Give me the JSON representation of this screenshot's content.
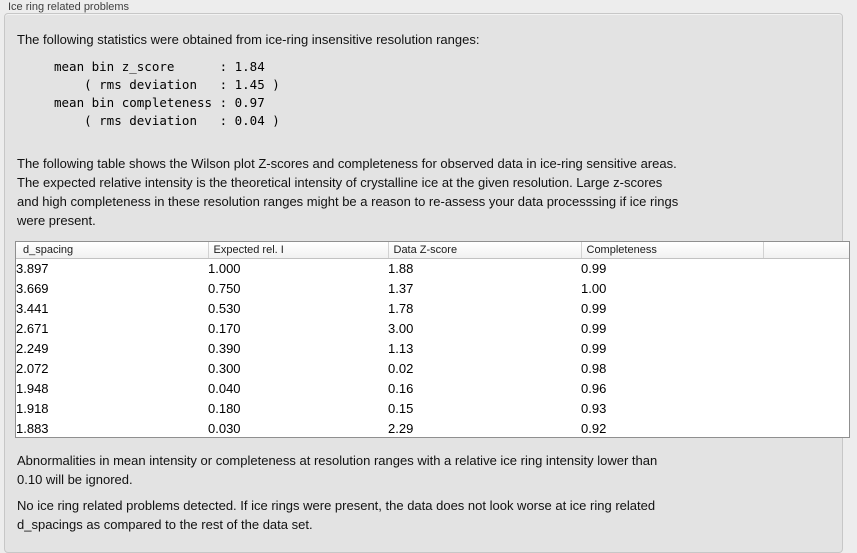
{
  "group": {
    "title": "Ice ring related problems"
  },
  "texts": {
    "intro": "The following statistics were obtained from ice-ring insensitive resolution ranges:",
    "stats_block": "mean bin z_score      : 1.84\n    ( rms deviation   : 1.45 )\nmean bin completeness : 0.97\n    ( rms deviation   : 0.04 )",
    "stats": {
      "mean_bin_z_score": "1.84",
      "z_score_rms_deviation": "1.45",
      "mean_bin_completeness": "0.97",
      "completeness_rms_deviation": "0.04"
    },
    "table_intro": "The following table shows the Wilson plot Z-scores and completeness for observed data in ice-ring sensitive areas.\nThe expected relative intensity is the theoretical intensity of crystalline ice at the given resolution. Large z-scores\nand high completeness in these resolution ranges might be a reason to re-assess your data processsing if ice rings\nwere present.",
    "ignore_note": "Abnormalities in mean intensity or completeness at resolution ranges with a relative ice ring intensity lower than\n0.10 will be ignored.",
    "conclusion": "No ice ring related problems detected. If ice rings were present, the data does not look worse at ice ring related\nd_spacings as compared to the rest of the data set."
  },
  "table": {
    "columns": [
      "d_spacing",
      "Expected rel. I",
      "Data Z-score",
      "Completeness",
      ""
    ],
    "rows": [
      [
        "3.897",
        "1.000",
        "1.88",
        "0.99"
      ],
      [
        "3.669",
        "0.750",
        "1.37",
        "1.00"
      ],
      [
        "3.441",
        "0.530",
        "1.78",
        "0.99"
      ],
      [
        "2.671",
        "0.170",
        "3.00",
        "0.99"
      ],
      [
        "2.249",
        "0.390",
        "1.13",
        "0.99"
      ],
      [
        "2.072",
        "0.300",
        "0.02",
        "0.98"
      ],
      [
        "1.948",
        "0.040",
        "0.16",
        "0.96"
      ],
      [
        "1.918",
        "0.180",
        "0.15",
        "0.93"
      ],
      [
        "1.883",
        "0.030",
        "2.29",
        "0.92"
      ]
    ]
  },
  "colors": {
    "panel_background": "#e3e3e3",
    "page_background": "#ededed",
    "table_border": "#8f8f8f",
    "text": "#111111"
  }
}
